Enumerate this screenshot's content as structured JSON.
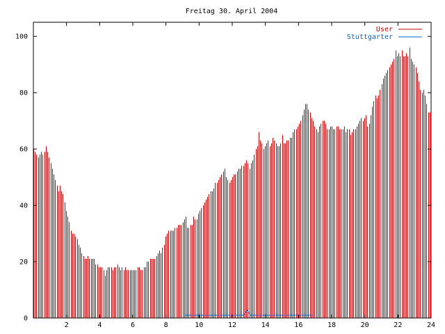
{
  "chart_data": {
    "type": "bar",
    "title": "Freitag 30. April 2004",
    "xlabel": "",
    "ylabel": "",
    "xlim": [
      0,
      24
    ],
    "ylim": [
      0,
      105
    ],
    "xticks": [
      2,
      4,
      6,
      8,
      10,
      12,
      14,
      16,
      18,
      20,
      22,
      24
    ],
    "yticks": [
      0,
      20,
      40,
      60,
      80,
      100
    ],
    "grid": false,
    "legend_position": "top-right",
    "series": [
      {
        "name": "User",
        "color": "#cc0000",
        "x_start": 0,
        "x_step": 0.0833,
        "values": [
          60,
          59,
          58,
          57,
          58,
          59,
          58,
          59,
          61,
          59,
          57,
          55,
          53,
          51,
          49,
          47,
          45,
          47,
          45,
          44,
          41,
          38,
          36,
          34,
          31,
          30,
          30,
          29,
          28,
          26,
          25,
          23,
          22,
          21,
          21,
          22,
          21,
          21,
          21,
          21,
          19,
          19,
          18,
          18,
          18,
          17,
          15,
          17,
          18,
          18,
          18,
          17,
          18,
          18,
          19,
          18,
          17,
          18,
          17,
          18,
          17,
          17,
          17,
          17,
          17,
          17,
          17,
          18,
          18,
          17,
          17,
          18,
          18,
          20,
          20,
          21,
          21,
          21,
          21,
          22,
          23,
          24,
          23,
          25,
          26,
          29,
          30,
          31,
          31,
          31,
          31,
          32,
          32,
          33,
          33,
          33,
          34,
          35,
          36,
          32,
          32,
          33,
          33,
          36,
          35,
          35,
          37,
          38,
          39,
          40,
          41,
          42,
          43,
          44,
          45,
          45,
          46,
          48,
          48,
          49,
          50,
          51,
          52,
          53,
          50,
          49,
          48,
          49,
          50,
          51,
          51,
          52,
          53,
          53,
          54,
          54,
          55,
          56,
          55,
          53,
          55,
          56,
          58,
          60,
          61,
          66,
          63,
          62,
          60,
          61,
          62,
          63,
          61,
          62,
          64,
          63,
          62,
          61,
          61,
          62,
          65,
          62,
          62,
          63,
          63,
          64,
          64,
          66,
          67,
          67,
          68,
          69,
          70,
          72,
          74,
          76,
          76,
          74,
          73,
          71,
          70,
          68,
          67,
          66,
          68,
          69,
          70,
          70,
          69,
          67,
          67,
          68,
          68,
          67,
          67,
          68,
          68,
          67,
          67,
          67,
          68,
          66,
          67,
          67,
          65,
          66,
          67,
          67,
          68,
          69,
          70,
          71,
          70,
          71,
          72,
          68,
          69,
          72,
          75,
          77,
          79,
          78,
          79,
          81,
          83,
          85,
          86,
          87,
          88,
          89,
          90,
          91,
          92,
          95,
          93,
          94,
          93,
          95,
          93,
          93,
          94,
          93,
          96,
          92,
          91,
          90,
          89,
          87,
          84,
          81,
          80,
          81,
          79,
          76,
          73,
          73
        ]
      },
      {
        "name": "Stuttgarter",
        "color": "#0066cc",
        "points": [
          [
            9.1,
            1.0
          ],
          [
            12.7,
            1.0
          ],
          [
            12.9,
            2.8
          ],
          [
            13.1,
            1.0
          ],
          [
            16.9,
            1.0
          ]
        ]
      }
    ]
  }
}
